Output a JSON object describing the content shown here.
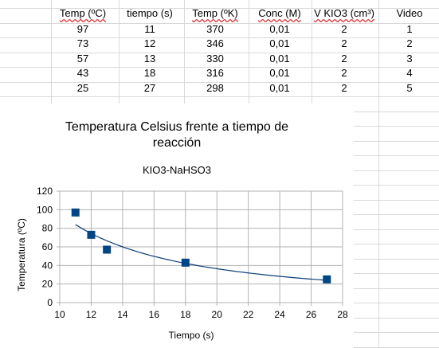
{
  "sheet": {
    "headers": [
      {
        "text": "Temp (ºC)",
        "spell": true
      },
      {
        "text": "tiempo (s)",
        "spell": false
      },
      {
        "text": "Temp (ºK)",
        "spell": true
      },
      {
        "text": "Conc (M)",
        "spell": true
      },
      {
        "text": "V KIO3 (cm³)",
        "spell": true
      },
      {
        "text": "Video",
        "spell": false
      }
    ],
    "rows": [
      [
        "97",
        "11",
        "370",
        "0,01",
        "2",
        "1"
      ],
      [
        "73",
        "12",
        "346",
        "0,01",
        "2",
        "2"
      ],
      [
        "57",
        "13",
        "330",
        "0,01",
        "2",
        "3"
      ],
      [
        "43",
        "18",
        "316",
        "0,01",
        "2",
        "4"
      ],
      [
        "25",
        "27",
        "298",
        "0,01",
        "2",
        "5"
      ]
    ]
  },
  "colors": {
    "series": "#004586",
    "trend": "#0b3d75",
    "grid": "#b3b3b3",
    "cell_grid": "#d9d9d9"
  },
  "chart_data": {
    "type": "scatter",
    "title": "Temperatura Celsius frente a tiempo de reacción",
    "title_lines": [
      "Temperatura Celsius frente a tiempo de",
      "reacción"
    ],
    "subtitle": "KIO3-NaHSO3",
    "xlabel": "Tiempo (s)",
    "ylabel": "Temperatura (ºC)",
    "xlim": [
      10,
      28
    ],
    "ylim": [
      0,
      120
    ],
    "xticks": [
      10,
      12,
      14,
      16,
      18,
      20,
      22,
      24,
      26,
      28
    ],
    "yticks": [
      0,
      20,
      40,
      60,
      80,
      100,
      120
    ],
    "grid": true,
    "marker": "square",
    "points": [
      {
        "x": 11,
        "y": 97
      },
      {
        "x": 12,
        "y": 73
      },
      {
        "x": 13,
        "y": 57
      },
      {
        "x": 18,
        "y": 43
      },
      {
        "x": 27,
        "y": 25
      }
    ],
    "trendline": {
      "type": "power",
      "x_range": [
        11,
        27
      ],
      "from_y": 84,
      "to_y": 24
    }
  }
}
